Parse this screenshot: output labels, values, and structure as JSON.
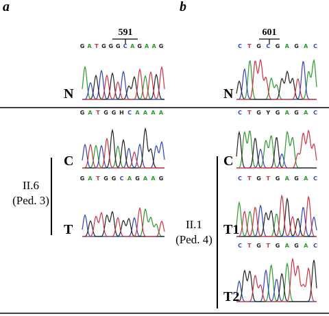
{
  "panels": [
    {
      "label": "a",
      "position": "591",
      "group": [
        "II.6",
        "(Ped. 3)"
      ],
      "rows": [
        {
          "sample": "N",
          "sequence": [
            "G",
            "A",
            "T",
            "G",
            "G",
            "G",
            "C",
            "A",
            "G",
            "A",
            "A",
            "G"
          ]
        },
        {
          "sample": "C",
          "sequence": [
            "G",
            "A",
            "T",
            "G",
            "G",
            "H",
            "C",
            "A",
            "A",
            "A",
            "A"
          ]
        },
        {
          "sample": "T",
          "sequence": [
            "G",
            "A",
            "T",
            "G",
            "G",
            "C",
            "A",
            "G",
            "A",
            "A",
            "G"
          ]
        }
      ]
    },
    {
      "label": "b",
      "position": "601",
      "group": [
        "II.1",
        "(Ped. 4)"
      ],
      "rows": [
        {
          "sample": "N",
          "sequence": [
            "C",
            "T",
            "G",
            "C",
            "G",
            "A",
            "G",
            "A",
            "C"
          ]
        },
        {
          "sample": "C",
          "sequence": [
            "C",
            "T",
            "G",
            "Y",
            "G",
            "A",
            "G",
            "A",
            "C"
          ]
        },
        {
          "sample": "T1",
          "sequence": [
            "C",
            "T",
            "G",
            "T",
            "G",
            "A",
            "G",
            "A",
            "C"
          ]
        },
        {
          "sample": "T2",
          "sequence": [
            "C",
            "T",
            "G",
            "T",
            "G",
            "A",
            "G",
            "A",
            "C"
          ]
        }
      ]
    }
  ],
  "base_colors": {
    "A": "#2a9a2a",
    "C": "#3040c0",
    "G": "#202020",
    "T": "#d03040"
  }
}
